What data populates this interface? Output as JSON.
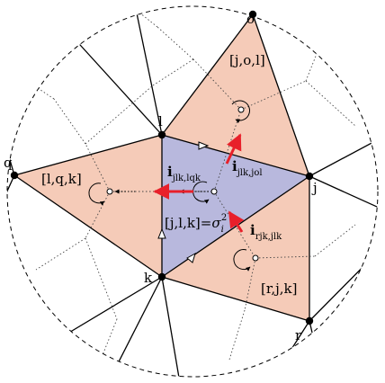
{
  "nodes": {
    "o": "o",
    "l": "l",
    "q": "q",
    "j": "j",
    "k": "k",
    "r": "r"
  },
  "faces": {
    "top": "[j,o,l]",
    "left": "[l,q,k]",
    "right": "[r,j,k]",
    "center_main": "[j,l,k]=",
    "center_sigma": "σ",
    "center_sigma_sub": "i",
    "center_sigma_sup": "2"
  },
  "vectors": {
    "left": {
      "symbol": "i",
      "subscript": "jlk,lqk"
    },
    "up": {
      "symbol": "i",
      "subscript": "jlk,jol"
    },
    "lower": {
      "symbol": "i",
      "subscript": "rjk,jlk"
    }
  },
  "colors": {
    "center_fill": "#b8b8dd",
    "neighbor_fill": "#f5cbb8",
    "arrow_red": "#e8202a",
    "edge": "#000000"
  }
}
